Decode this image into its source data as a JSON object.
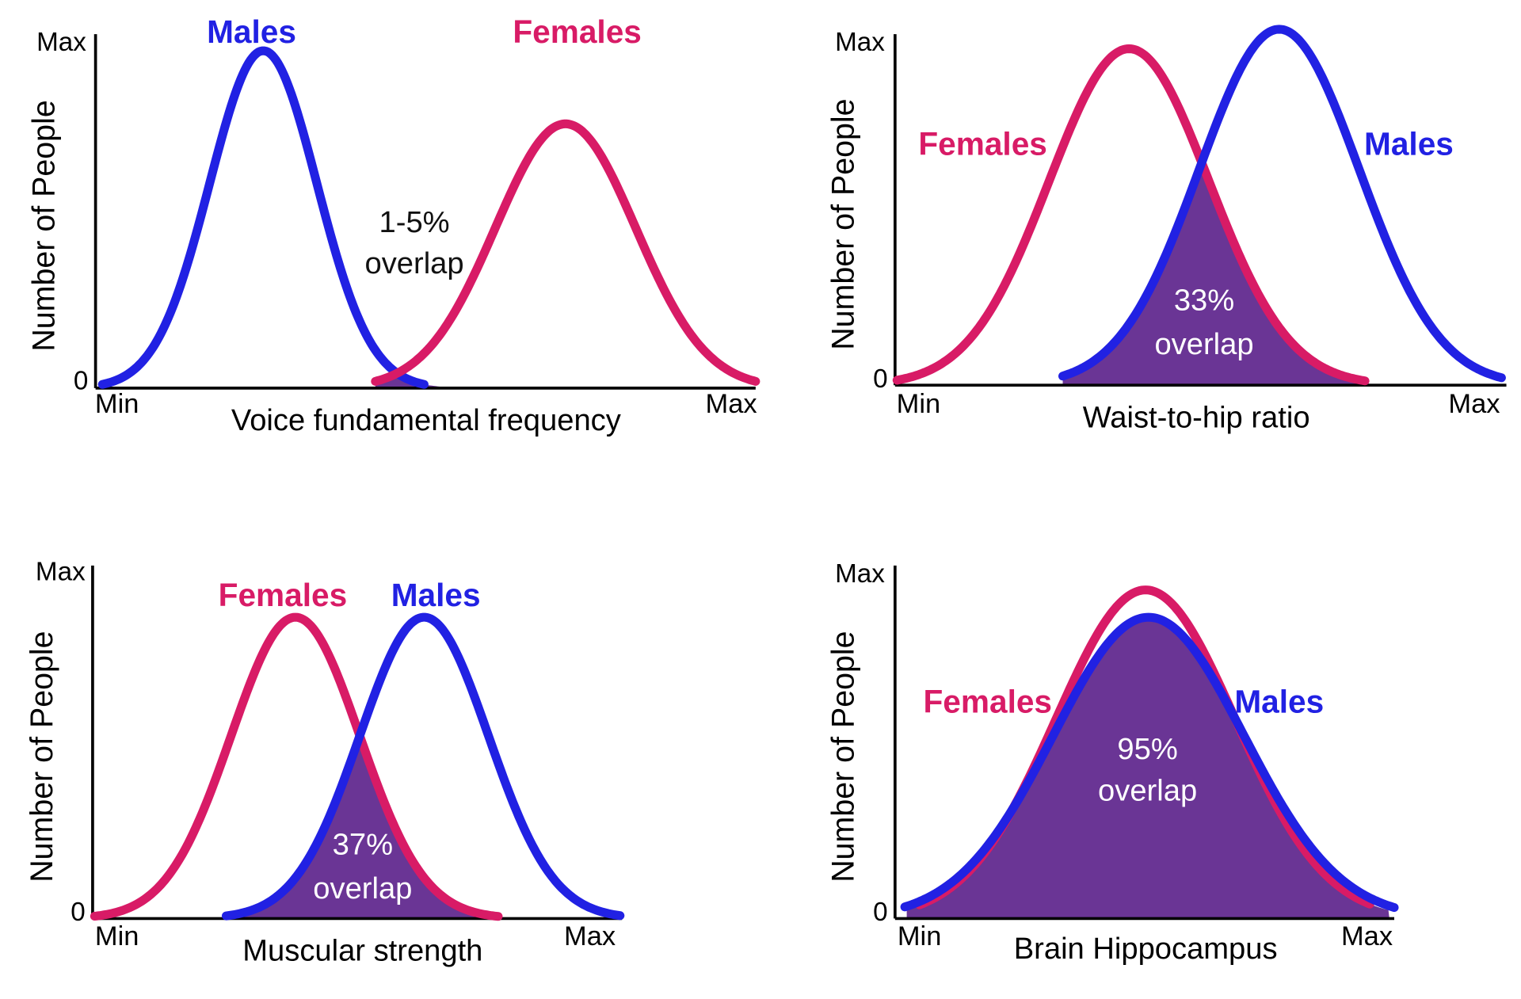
{
  "panels": [
    {
      "y_label": "Number of People",
      "y_ticks": [
        "Max",
        "0"
      ],
      "x_ticks": [
        "Min",
        "Max"
      ],
      "x_label": "Voice fundamental frequency",
      "series": [
        {
          "name": "Males",
          "color": "#2121e3"
        },
        {
          "name": "Females",
          "color": "#d81b66"
        }
      ],
      "annotation": [
        "1-5%",
        "overlap"
      ]
    },
    {
      "y_label": "Number of People",
      "y_ticks": [
        "Max",
        "0"
      ],
      "x_ticks": [
        "Min",
        "Max"
      ],
      "x_label": "Waist-to-hip ratio",
      "series": [
        {
          "name": "Females",
          "color": "#d81b66"
        },
        {
          "name": "Males",
          "color": "#2121e3"
        }
      ],
      "annotation": [
        "33%",
        "overlap"
      ]
    },
    {
      "y_label": "Number of People",
      "y_ticks": [
        "Max",
        "0"
      ],
      "x_ticks": [
        "Min",
        "Max"
      ],
      "x_label": "Muscular strength",
      "series": [
        {
          "name": "Females",
          "color": "#d81b66"
        },
        {
          "name": "Males",
          "color": "#2121e3"
        }
      ],
      "annotation": [
        "37%",
        "overlap"
      ]
    },
    {
      "y_label": "Number of People",
      "y_ticks": [
        "Max",
        "0"
      ],
      "x_ticks": [
        "Min",
        "Max"
      ],
      "x_label": "Brain Hippocampus",
      "series": [
        {
          "name": "Females",
          "color": "#d81b66"
        },
        {
          "name": "Males",
          "color": "#2121e3"
        }
      ],
      "annotation": [
        "95%",
        "overlap"
      ]
    }
  ]
}
